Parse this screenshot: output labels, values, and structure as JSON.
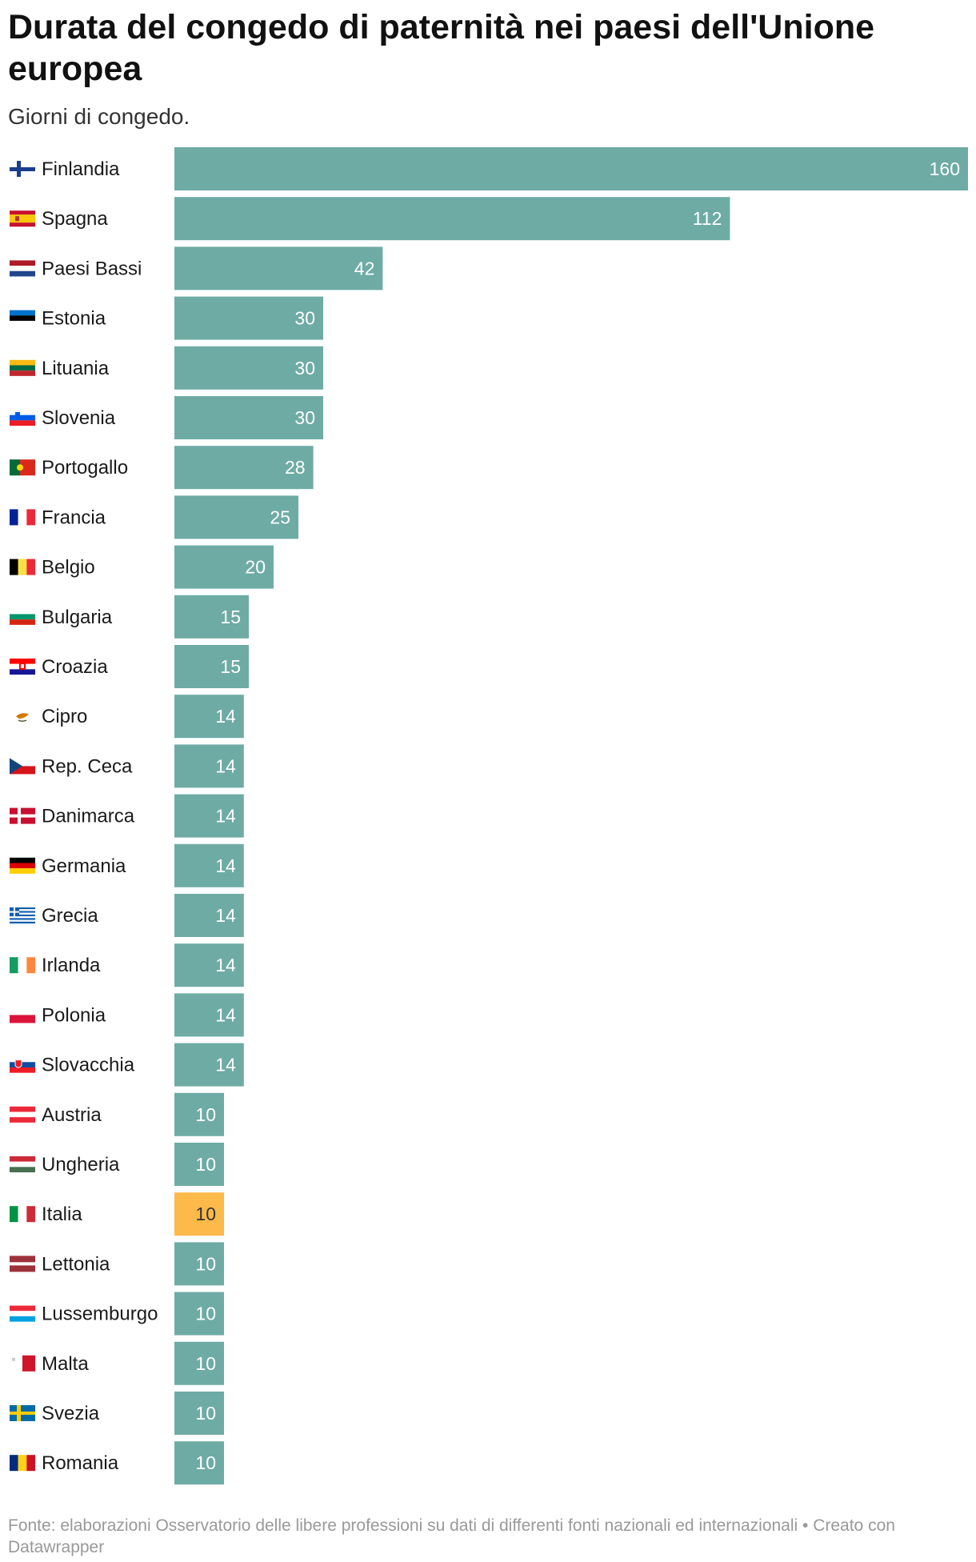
{
  "chart_data": {
    "type": "bar",
    "orientation": "horizontal",
    "title": "Durata del congedo di paternità nei paesi dell'Unione europea",
    "subtitle": "Giorni di congedo.",
    "categories": [
      "Finlandia",
      "Spagna",
      "Paesi Bassi",
      "Estonia",
      "Lituania",
      "Slovenia",
      "Portogallo",
      "Francia",
      "Belgio",
      "Bulgaria",
      "Croazia",
      "Cipro",
      "Rep. Ceca",
      "Danimarca",
      "Germania",
      "Grecia",
      "Irlanda",
      "Polonia",
      "Slovacchia",
      "Austria",
      "Ungheria",
      "Italia",
      "Lettonia",
      "Lussemburgo",
      "Malta",
      "Svezia",
      "Romania"
    ],
    "values": [
      160,
      112,
      42,
      30,
      30,
      30,
      28,
      25,
      20,
      15,
      15,
      14,
      14,
      14,
      14,
      14,
      14,
      14,
      14,
      10,
      10,
      10,
      10,
      10,
      10,
      10,
      10
    ],
    "flags": [
      "finland-flag-icon",
      "spain-flag-icon",
      "netherlands-flag-icon",
      "estonia-flag-icon",
      "lithuania-flag-icon",
      "slovenia-flag-icon",
      "portugal-flag-icon",
      "france-flag-icon",
      "belgium-flag-icon",
      "bulgaria-flag-icon",
      "croatia-flag-icon",
      "cyprus-flag-icon",
      "czech-republic-flag-icon",
      "denmark-flag-icon",
      "germany-flag-icon",
      "greece-flag-icon",
      "ireland-flag-icon",
      "poland-flag-icon",
      "slovakia-flag-icon",
      "austria-flag-icon",
      "hungary-flag-icon",
      "italy-flag-icon",
      "latvia-flag-icon",
      "luxembourg-flag-icon",
      "malta-flag-icon",
      "sweden-flag-icon",
      "romania-flag-icon"
    ],
    "highlight": "Italia",
    "xlim": [
      0,
      160
    ],
    "grid": false,
    "colors": {
      "bar": "#6eaba5",
      "highlight": "#fdb94a"
    }
  },
  "footer": {
    "source": "Fonte: elaborazioni Osservatorio delle libere professioni su dati di differenti fonti nazionali ed internazionali • Creato con Datawrapper"
  }
}
